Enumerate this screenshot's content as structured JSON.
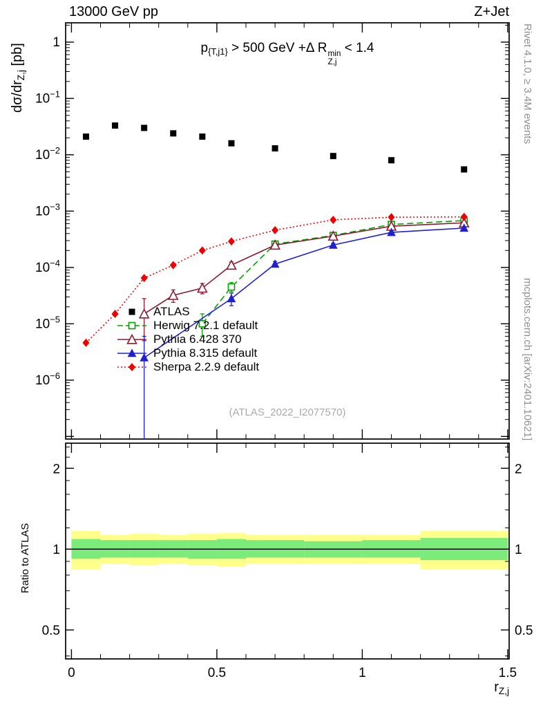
{
  "header": {
    "left": "13000 GeV pp",
    "right": "Z+Jet"
  },
  "side_notes": {
    "top_right": "Rivet 4.1.0, ≥ 3.4M events",
    "bottom_right": "mcplots.cern.ch [arXiv:2401.10621]"
  },
  "watermark": "(ATLAS_2022_I2077570)",
  "labels": {
    "title_rich": [
      {
        "t": "p",
        "m": "n"
      },
      {
        "t": "{T,j1}",
        "m": "sub"
      },
      {
        "t": " > 500 GeV +Δ R",
        "m": "n"
      },
      {
        "m": "stack",
        "sup": "min",
        "sub": "Z,j"
      },
      {
        "t": " < 1.4",
        "m": "n"
      }
    ],
    "ylabel_main_rich": [
      {
        "t": "dσ/dr",
        "m": "n"
      },
      {
        "t": "Z,j",
        "m": "sub"
      },
      {
        "t": " [pb]",
        "m": "n"
      }
    ],
    "ylabel_ratio": "Ratio to ATLAS",
    "xlabel_rich": [
      {
        "t": "r",
        "m": "n"
      },
      {
        "t": "Z,j",
        "m": "sub"
      }
    ]
  },
  "chart_data": [
    {
      "type": "scatter",
      "title": "p_{T,j1} > 500 GeV + ΔR_{Z,j}^min < 1.4",
      "xlabel": "r_{Z,j}",
      "ylabel": "dσ/dr_{Z,j} [pb]",
      "xscale": "linear",
      "yscale": "log",
      "xlim": [
        -0.02,
        1.505
      ],
      "ylim": [
        9e-08,
        2.2
      ],
      "xticks_major": [
        0,
        0.5,
        1,
        1.5
      ],
      "xtick_minor_step": 0.1,
      "ytick_exponents": [
        0,
        -1,
        -2,
        -3,
        -4,
        -5,
        -6
      ],
      "bin_edges": [
        0,
        0.1,
        0.2,
        0.3,
        0.4,
        0.5,
        0.6,
        0.8,
        1.0,
        1.2,
        1.5
      ],
      "series": [
        {
          "id": "atlas",
          "name": "ATLAS",
          "color": "#000000",
          "marker": "square-filled",
          "msize": 9,
          "line": "none",
          "x": [
            0.05,
            0.15,
            0.25,
            0.35,
            0.45,
            0.55,
            0.7,
            0.9,
            1.1,
            1.35
          ],
          "y": [
            0.021,
            0.033,
            0.03,
            0.024,
            0.021,
            0.016,
            0.013,
            0.0095,
            0.008,
            0.0055
          ]
        },
        {
          "id": "herwig",
          "name": "Herwig 7.2.1 default",
          "color": "#00A000",
          "marker": "square-open",
          "msize": 9,
          "line": "dashed",
          "x": [
            0.45,
            0.55,
            0.7,
            0.9,
            1.1,
            1.35
          ],
          "y": [
            1e-05,
            4.5e-05,
            0.00026,
            0.00037,
            0.00058,
            0.00068
          ],
          "ylo": [
            6e-06,
            3.7e-05,
            0.000235,
            0.000345,
            0.00055,
            0.00065
          ],
          "yhi": [
            1.5e-05,
            5.4e-05,
            0.000285,
            0.000395,
            0.00061,
            0.00071
          ]
        },
        {
          "id": "pythia6",
          "name": "Pythia 6.428 370",
          "color": "#8B1A30",
          "marker": "triangle-open",
          "msize": 13,
          "line": "solid",
          "x": [
            0.25,
            0.35,
            0.45,
            0.55,
            0.7,
            0.9,
            1.1,
            1.35
          ],
          "y": [
            1.5e-05,
            3.2e-05,
            4.3e-05,
            0.00011,
            0.00025,
            0.00036,
            0.00054,
            0.00062
          ],
          "ylo": [
            5e-06,
            2.4e-05,
            3.4e-05,
            9.5e-05,
            0.00023,
            0.00034,
            0.000515,
            0.000595
          ],
          "yhi": [
            2.8e-05,
            4e-05,
            5.2e-05,
            0.000125,
            0.00027,
            0.00038,
            0.000565,
            0.000645
          ]
        },
        {
          "id": "pythia8",
          "name": "Pythia 8.315 default",
          "color": "#2020D0",
          "marker": "triangle-filled",
          "msize": 10,
          "line": "solid",
          "x": [
            0.25,
            0.55,
            0.7,
            0.9,
            1.1,
            1.35
          ],
          "y": [
            2.5e-06,
            2.8e-05,
            0.000115,
            0.00025,
            0.00042,
            0.0005
          ],
          "ylo": [
            1e-09,
            2.1e-05,
            0.000102,
            0.000232,
            0.0004,
            0.00048
          ],
          "yhi": [
            6e-06,
            3.5e-05,
            0.000128,
            0.000268,
            0.00044,
            0.00052
          ]
        },
        {
          "id": "sherpa",
          "name": "Sherpa 2.2.9 default",
          "color": "#EE0000",
          "marker": "diamond-filled",
          "msize": 10,
          "line": "dotted",
          "x": [
            0.05,
            0.15,
            0.25,
            0.35,
            0.45,
            0.55,
            0.7,
            0.9,
            1.1,
            1.35
          ],
          "y": [
            4.6e-06,
            1.5e-05,
            6.5e-05,
            0.00011,
            0.0002,
            0.00029,
            0.00046,
            0.0007,
            0.00078,
            0.00079
          ]
        }
      ]
    },
    {
      "type": "ratio-band",
      "ylabel": "Ratio to ATLAS",
      "yscale": "log",
      "ylim": [
        0.39,
        2.48
      ],
      "yticks_major": [
        0.5,
        1,
        2
      ],
      "yticklabels": [
        "0.5",
        "1",
        "2"
      ],
      "yticks_minor": [
        0.4,
        0.6,
        0.7,
        0.8,
        0.9,
        1.2,
        1.4,
        1.6,
        1.8,
        2.2,
        2.4
      ],
      "xlim": [
        -0.02,
        1.505
      ],
      "xticks_major": [
        0,
        0.5,
        1,
        1.5
      ],
      "xticklabels": [
        "0",
        "0.5",
        "1",
        "1.5"
      ],
      "xtick_minor_step": 0.1,
      "reference_line": 1,
      "bin_edges": [
        0,
        0.1,
        0.2,
        0.3,
        0.4,
        0.5,
        0.6,
        0.8,
        1.0,
        1.2,
        1.5
      ],
      "bands": [
        {
          "name": "data-uncertainty-outer",
          "color": "#FFFF8C",
          "lo": [
            0.84,
            0.88,
            0.87,
            0.88,
            0.87,
            0.86,
            0.88,
            0.88,
            0.88,
            0.84
          ],
          "hi": [
            1.17,
            1.13,
            1.14,
            1.13,
            1.14,
            1.15,
            1.13,
            1.13,
            1.13,
            1.17
          ]
        },
        {
          "name": "data-uncertainty-inner",
          "color": "#7BEB7B",
          "lo": [
            0.92,
            0.93,
            0.93,
            0.93,
            0.92,
            0.92,
            0.93,
            0.93,
            0.93,
            0.91
          ],
          "hi": [
            1.09,
            1.08,
            1.08,
            1.08,
            1.08,
            1.09,
            1.08,
            1.07,
            1.08,
            1.1
          ]
        }
      ]
    }
  ]
}
